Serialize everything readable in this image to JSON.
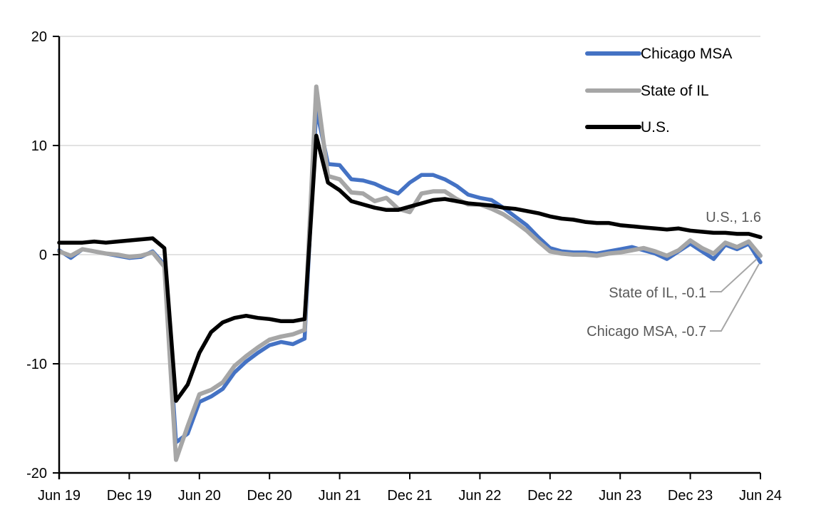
{
  "chart_data": {
    "type": "line",
    "title": "",
    "xlabel": "",
    "ylabel": "",
    "ylim": [
      -20,
      20
    ],
    "yticks": [
      20,
      10,
      0,
      -10,
      -20
    ],
    "xtick_labels": [
      "Jun 19",
      "Dec 19",
      "Jun 20",
      "Dec 20",
      "Jun 21",
      "Dec 21",
      "Jun 22",
      "Dec 22",
      "Jun 23",
      "Dec 23",
      "Jun 24"
    ],
    "grid": true,
    "legend_position": "top-right",
    "categories": [
      "Jun 19",
      "Jul 19",
      "Aug 19",
      "Sep 19",
      "Oct 19",
      "Nov 19",
      "Dec 19",
      "Jan 20",
      "Feb 20",
      "Mar 20",
      "Apr 20",
      "May 20",
      "Jun 20",
      "Jul 20",
      "Aug 20",
      "Sep 20",
      "Oct 20",
      "Nov 20",
      "Dec 20",
      "Jan 21",
      "Feb 21",
      "Mar 21",
      "Apr 21",
      "May 21",
      "Jun 21",
      "Jul 21",
      "Aug 21",
      "Sep 21",
      "Oct 21",
      "Nov 21",
      "Dec 21",
      "Jan 22",
      "Feb 22",
      "Mar 22",
      "Apr 22",
      "May 22",
      "Jun 22",
      "Jul 22",
      "Aug 22",
      "Sep 22",
      "Oct 22",
      "Nov 22",
      "Dec 22",
      "Jan 23",
      "Feb 23",
      "Mar 23",
      "Apr 23",
      "May 23",
      "Jun 23",
      "Jul 23",
      "Aug 23",
      "Sep 23",
      "Oct 23",
      "Nov 23",
      "Dec 23",
      "Jan 24",
      "Feb 24",
      "Mar 24",
      "Apr 24",
      "May 24",
      "Jun 24"
    ],
    "series": [
      {
        "name": "Chicago MSA",
        "color": "#4472C4",
        "width": 5.5,
        "values": [
          0.4,
          -0.3,
          0.5,
          0.3,
          0.1,
          -0.1,
          -0.3,
          -0.2,
          0.3,
          -0.9,
          -17.2,
          -16.4,
          -13.5,
          -13.0,
          -12.3,
          -10.8,
          -9.8,
          -9.0,
          -8.3,
          -8.0,
          -8.2,
          -7.7,
          13.4,
          8.3,
          8.2,
          6.9,
          6.8,
          6.5,
          6.0,
          5.6,
          6.6,
          7.3,
          7.3,
          6.9,
          6.3,
          5.5,
          5.2,
          5.0,
          4.3,
          3.5,
          2.7,
          1.6,
          0.6,
          0.3,
          0.2,
          0.2,
          0.1,
          0.3,
          0.5,
          0.7,
          0.4,
          0.1,
          -0.4,
          0.3,
          1.0,
          0.3,
          -0.4,
          0.9,
          0.5,
          1.0,
          -0.7
        ]
      },
      {
        "name": "State of IL",
        "color": "#A6A6A6",
        "width": 6,
        "values": [
          0.3,
          -0.1,
          0.5,
          0.3,
          0.1,
          0.0,
          -0.2,
          -0.1,
          0.2,
          -1.1,
          -18.8,
          -15.7,
          -12.8,
          -12.4,
          -11.7,
          -10.2,
          -9.3,
          -8.5,
          -7.8,
          -7.5,
          -7.3,
          -6.9,
          15.4,
          7.2,
          6.9,
          5.7,
          5.6,
          4.9,
          5.2,
          4.2,
          3.9,
          5.6,
          5.8,
          5.8,
          5.1,
          4.6,
          4.6,
          4.2,
          3.7,
          3.0,
          2.2,
          1.2,
          0.3,
          0.1,
          0.0,
          0.0,
          -0.1,
          0.1,
          0.2,
          0.4,
          0.6,
          0.3,
          -0.1,
          0.4,
          1.3,
          0.6,
          0.1,
          1.1,
          0.7,
          1.2,
          -0.1
        ]
      },
      {
        "name": "U.S.",
        "color": "#000000",
        "width": 5.5,
        "values": [
          1.1,
          1.1,
          1.1,
          1.2,
          1.1,
          1.2,
          1.3,
          1.4,
          1.5,
          0.6,
          -13.4,
          -11.9,
          -9.0,
          -7.1,
          -6.2,
          -5.8,
          -5.6,
          -5.8,
          -5.9,
          -6.1,
          -6.1,
          -5.9,
          10.9,
          6.6,
          5.9,
          4.9,
          4.6,
          4.3,
          4.1,
          4.1,
          4.4,
          4.7,
          5.0,
          5.1,
          4.9,
          4.7,
          4.6,
          4.5,
          4.3,
          4.2,
          4.0,
          3.8,
          3.5,
          3.3,
          3.2,
          3.0,
          2.9,
          2.9,
          2.7,
          2.6,
          2.5,
          2.4,
          2.3,
          2.4,
          2.2,
          2.1,
          2.0,
          2.0,
          1.9,
          1.9,
          1.6
        ]
      }
    ]
  },
  "annotations": {
    "us": {
      "label": "U.S., 1.6"
    },
    "il": {
      "label": "State of IL, -0.1"
    },
    "msa": {
      "label": "Chicago MSA, -0.7"
    }
  },
  "colors": {
    "gridline": "#D9D9D9",
    "axis": "#000000",
    "annotation_text": "#595959",
    "leader_line": "#A6A6A6",
    "background": "#FFFFFF"
  }
}
